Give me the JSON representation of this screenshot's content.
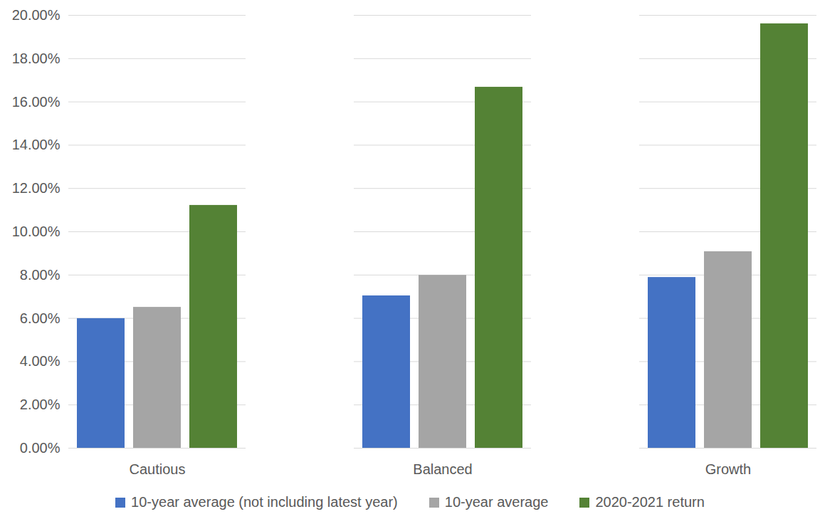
{
  "chart_data": {
    "type": "bar",
    "categories": [
      "Cautious",
      "Balanced",
      "Growth"
    ],
    "series": [
      {
        "name": "10-year average (not including latest year)",
        "color": "#4472c4",
        "values": [
          5.99,
          7.04,
          7.89
        ]
      },
      {
        "name": "10-year average",
        "color": "#a5a5a5",
        "values": [
          6.51,
          7.99,
          9.08
        ]
      },
      {
        "name": "2020-2021 return",
        "color": "#548235",
        "values": [
          11.22,
          16.68,
          19.61
        ]
      }
    ],
    "ylim": [
      0,
      20
    ],
    "yticks": [
      {
        "value": 0,
        "label": "0.00%"
      },
      {
        "value": 2,
        "label": "2.00%"
      },
      {
        "value": 4,
        "label": "4.00%"
      },
      {
        "value": 6,
        "label": "6.00%"
      },
      {
        "value": 8,
        "label": "8.00%"
      },
      {
        "value": 10,
        "label": "10.00%"
      },
      {
        "value": 12,
        "label": "12.00%"
      },
      {
        "value": 14,
        "label": "14.00%"
      },
      {
        "value": 16,
        "label": "16.00%"
      },
      {
        "value": 18,
        "label": "18.00%"
      },
      {
        "value": 20,
        "label": "20.00%"
      }
    ],
    "grid": true,
    "legend": "bottom"
  }
}
